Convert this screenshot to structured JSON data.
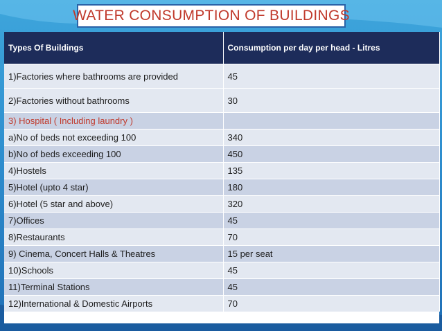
{
  "title": "WATER CONSUMPTION OF BUILDINGS",
  "table": {
    "headers": [
      "Types Of Buildings",
      "Consumption per day per head - Litres"
    ],
    "rows": [
      {
        "type": "1)Factories where bathrooms are provided",
        "value": "45"
      },
      {
        "type": "2)Factories without bathrooms",
        "value": "30"
      },
      {
        "type": "3) Hospital ( Including laundry )",
        "value": ""
      },
      {
        "type": "a)No of beds not exceeding 100",
        "value": "340"
      },
      {
        "type": "b)No of beds exceeding 100",
        "value": "450"
      },
      {
        "type": "4)Hostels",
        "value": "135"
      },
      {
        "type": "5)Hotel (upto 4 star)",
        "value": "180"
      },
      {
        "type": "6)Hotel (5 star and above)",
        "value": "320"
      },
      {
        "type": "7)Offices",
        "value": "45"
      },
      {
        "type": "8)Restaurants",
        "value": "70"
      },
      {
        "type": "9) Cinema, Concert Halls & Theatres",
        "value": "15 per seat"
      },
      {
        "type": "10)Schools",
        "value": "45"
      },
      {
        "type": "11)Terminal Stations",
        "value": "45"
      },
      {
        "type": "12)International & Domestic Airports",
        "value": "70"
      }
    ]
  },
  "colors": {
    "header_bg": "#1d2c5a",
    "title_text": "#c0392b",
    "row_light": "#e3e8f1",
    "row_dark": "#c9d2e4",
    "highlight_text": "#c0392b"
  }
}
